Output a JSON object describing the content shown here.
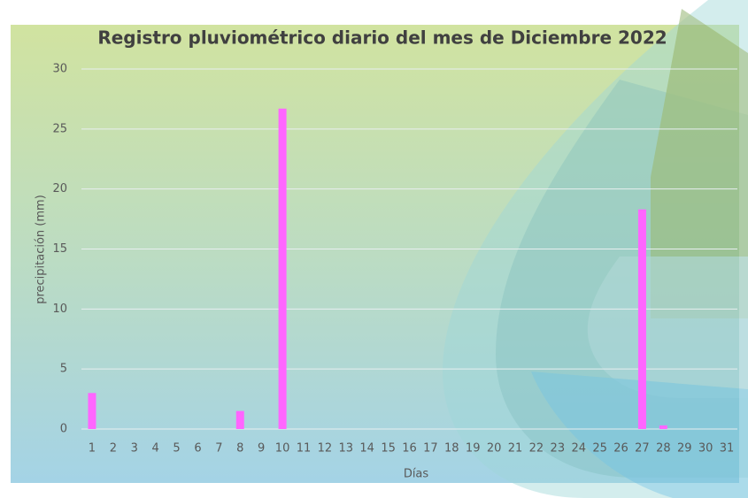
{
  "chart_data": {
    "type": "bar",
    "title": "Registro pluviométrico diario del mes de Diciembre 2022",
    "x_label": "Días",
    "y_label": "precipitación (mm)",
    "categories": [
      "1",
      "2",
      "3",
      "4",
      "5",
      "6",
      "7",
      "8",
      "9",
      "10",
      "11",
      "12",
      "13",
      "14",
      "15",
      "16",
      "17",
      "18",
      "19",
      "20",
      "21",
      "22",
      "23",
      "24",
      "25",
      "26",
      "27",
      "28",
      "29",
      "30",
      "31"
    ],
    "values": [
      3,
      0,
      0,
      0,
      0,
      0,
      0,
      1.5,
      0,
      26.7,
      0,
      0,
      0,
      0,
      0,
      0,
      0,
      0,
      0,
      0,
      0,
      0,
      0,
      0,
      0,
      0,
      18.3,
      0.3,
      0,
      0,
      0
    ],
    "color": "#ff66ff",
    "ylim": [
      0,
      30
    ],
    "yticks": [
      0,
      5,
      10,
      15,
      20,
      25,
      30
    ],
    "grid": true
  }
}
